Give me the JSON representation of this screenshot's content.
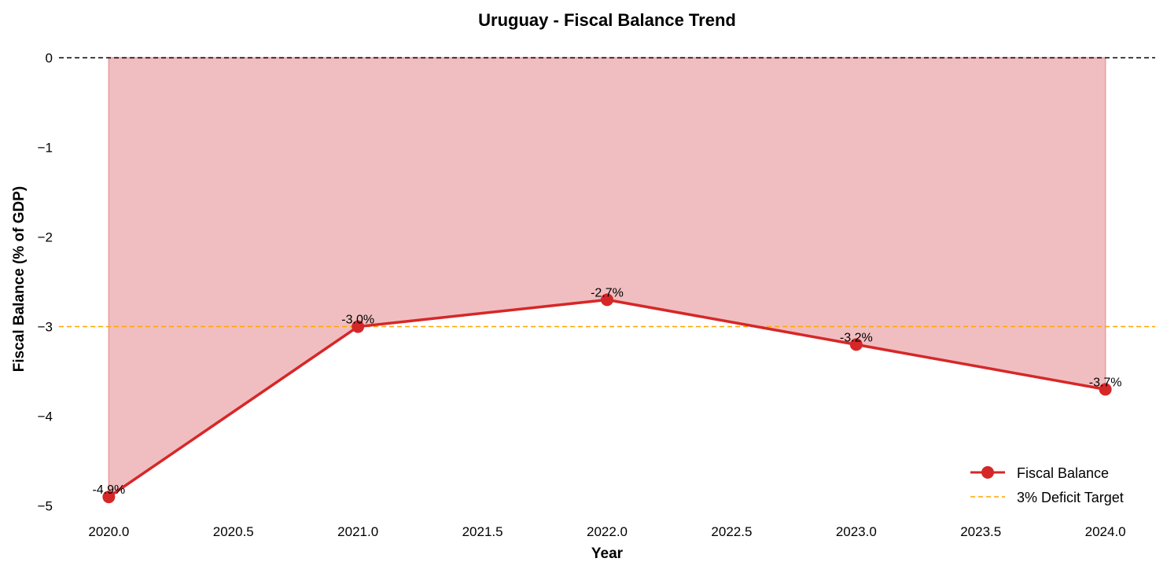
{
  "chart_data": {
    "type": "line",
    "title": "Uruguay - Fiscal Balance Trend",
    "xlabel": "Year",
    "ylabel": "Fiscal Balance (% of GDP)",
    "x": [
      2020,
      2021,
      2022,
      2023,
      2024
    ],
    "series": [
      {
        "name": "Fiscal Balance",
        "values": [
          -4.9,
          -3.0,
          -2.7,
          -3.2,
          -3.7
        ],
        "color": "#d62728",
        "fill_color": "#f0bec0"
      }
    ],
    "data_labels": [
      "-4.9%",
      "-3.0%",
      "-2.7%",
      "-3.2%",
      "-3.7%"
    ],
    "reference_lines": [
      {
        "y": 0,
        "color": "#000000",
        "style": "dashed"
      },
      {
        "y": -3,
        "name": "3% Deficit Target",
        "color": "#ffa500",
        "style": "dashed"
      }
    ],
    "xticks": [
      "2020.0",
      "2020.5",
      "2021.0",
      "2021.5",
      "2022.0",
      "2022.5",
      "2023.0",
      "2023.5",
      "2024.0"
    ],
    "xtick_values": [
      2020,
      2020.5,
      2021,
      2021.5,
      2022,
      2022.5,
      2023,
      2023.5,
      2024
    ],
    "yticks": [
      "0",
      "−1",
      "−2",
      "−3",
      "−4",
      "−5"
    ],
    "ytick_values": [
      0,
      -1,
      -2,
      -3,
      -4,
      -5
    ],
    "xlim": [
      2019.8,
      2024.2
    ],
    "ylim": [
      -5.1,
      0.25
    ],
    "grid": false,
    "legend_position": "bottom-right"
  }
}
